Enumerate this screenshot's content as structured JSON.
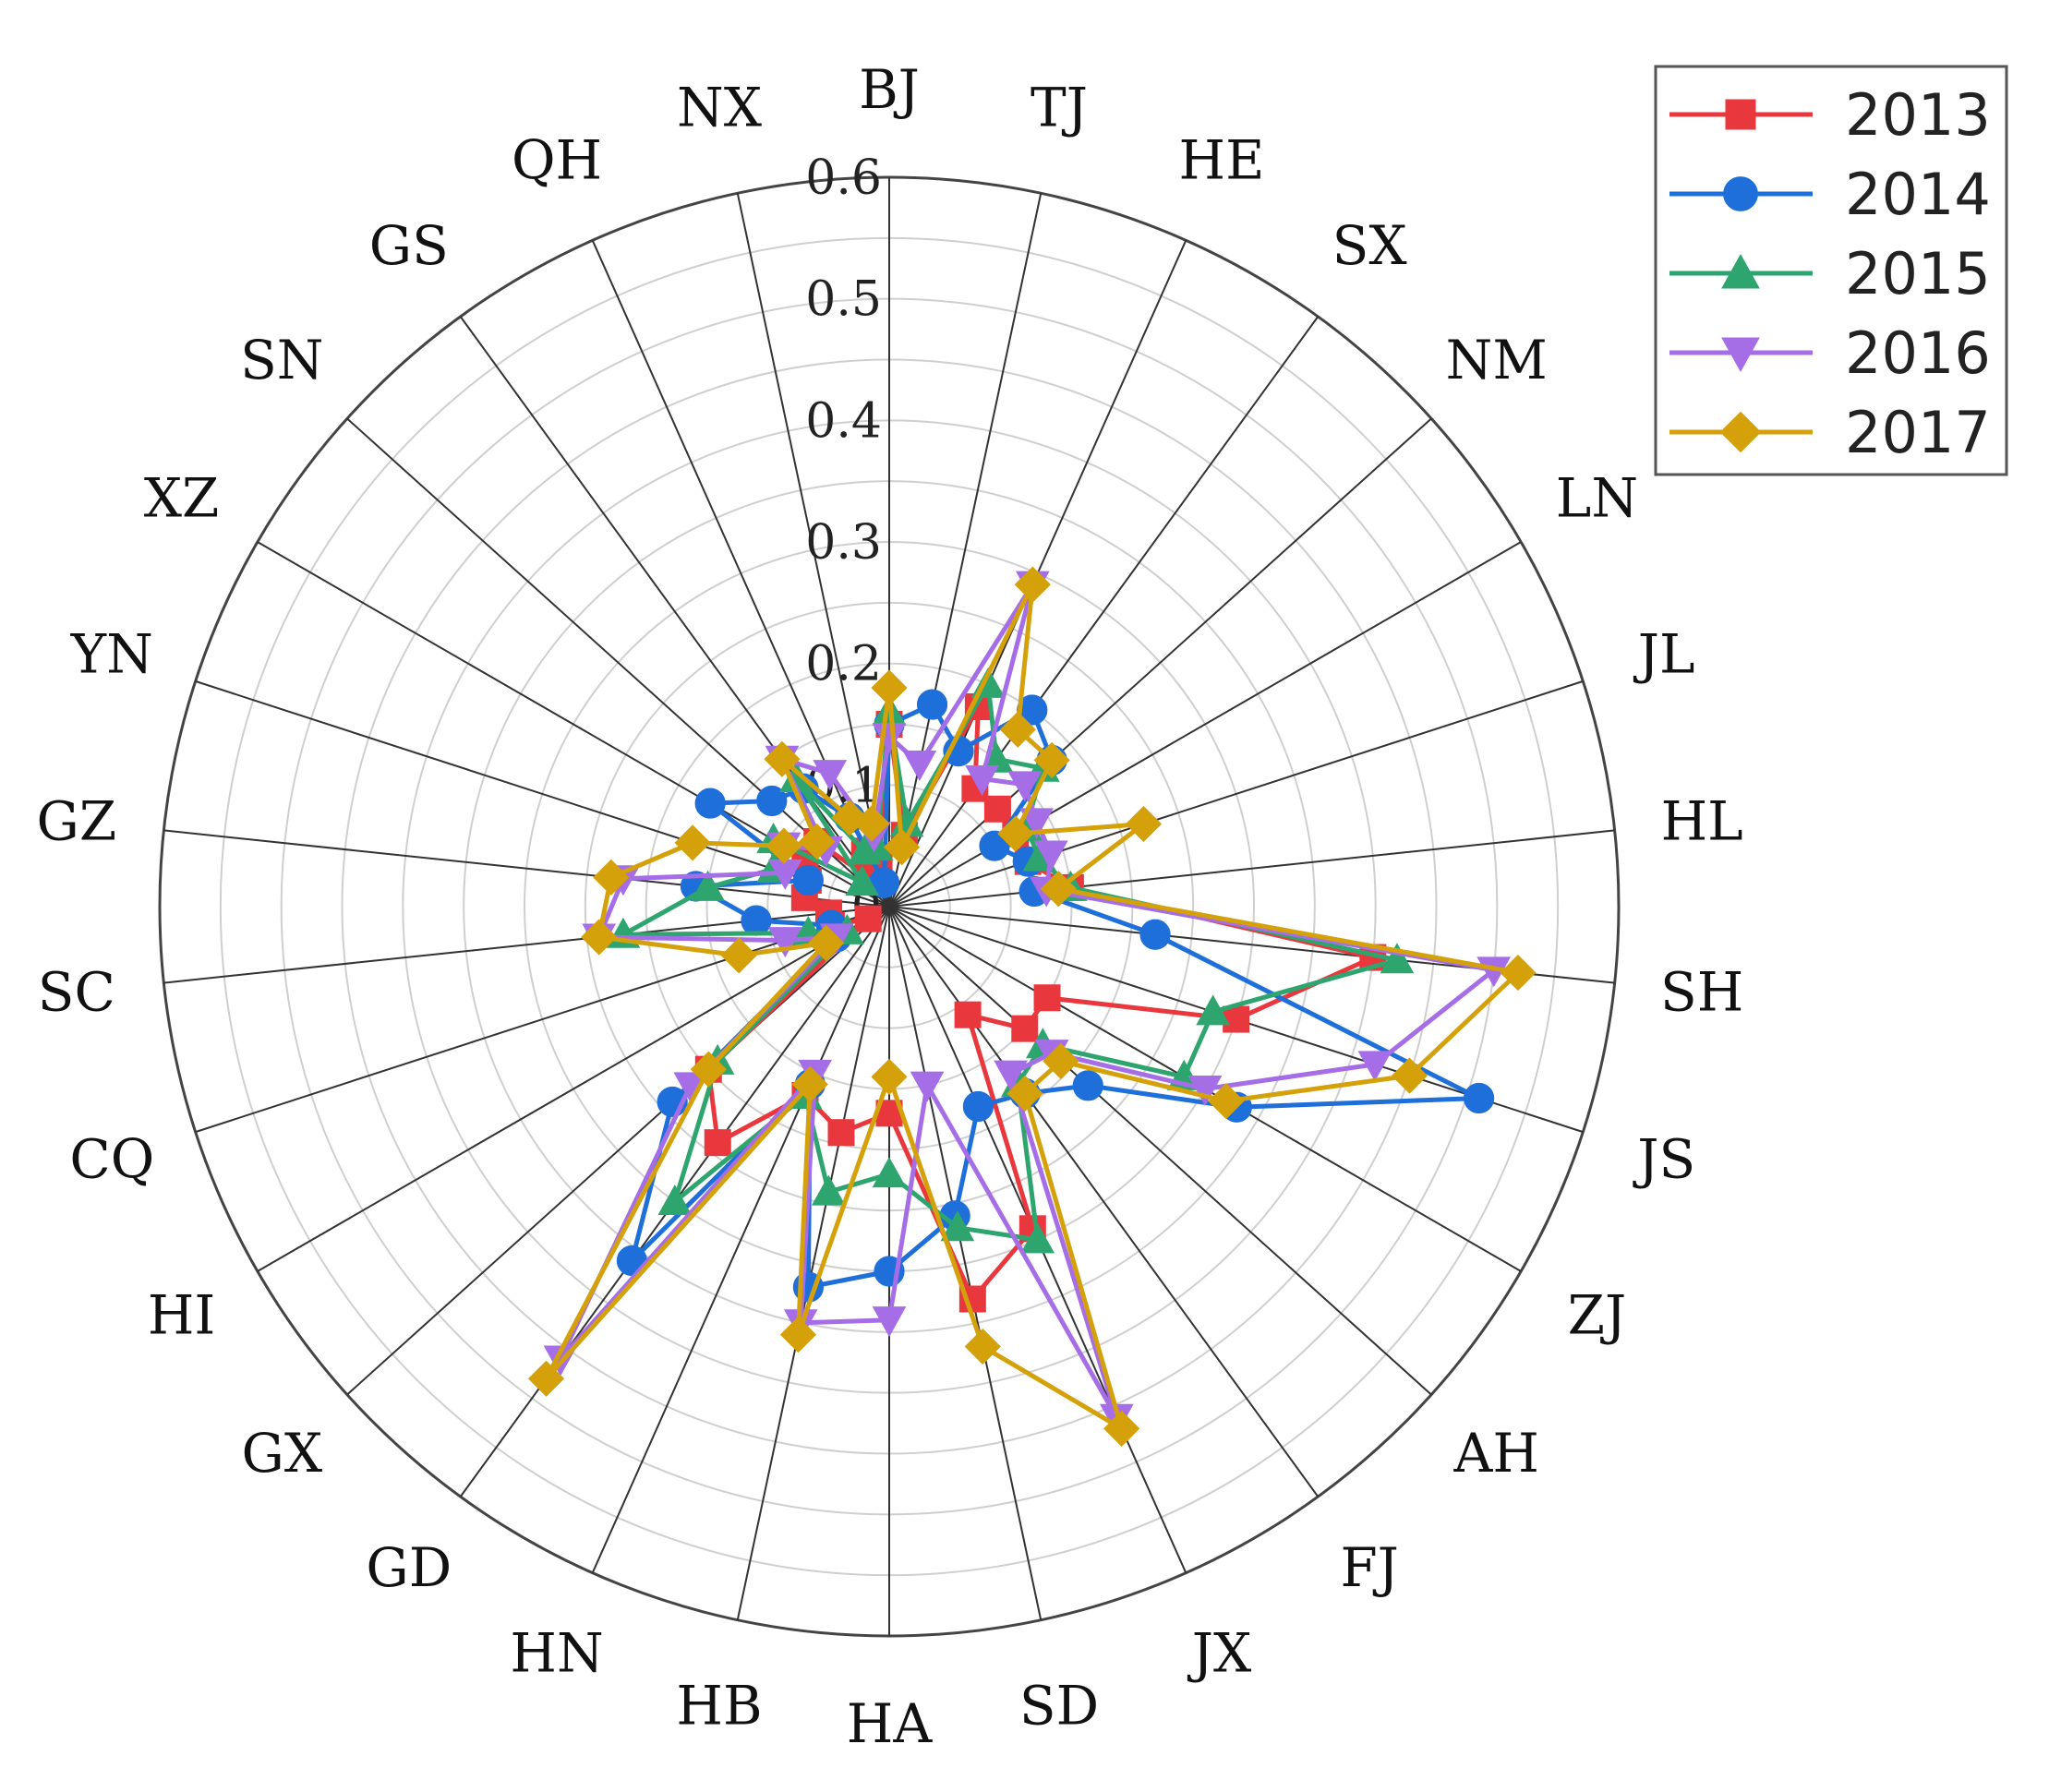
{
  "chart_data": {
    "type": "radar",
    "categories": [
      "BJ",
      "TJ",
      "HE",
      "SX",
      "NM",
      "LN",
      "JL",
      "HL",
      "SH",
      "JS",
      "ZJ",
      "AH",
      "FJ",
      "JX",
      "SD",
      "HA",
      "HB",
      "HN",
      "GD",
      "GX",
      "HI",
      "CQ",
      "SC",
      "GZ",
      "YN",
      "XZ",
      "SN",
      "GS",
      "QH",
      "NX"
    ],
    "radial_ticks": [
      "0",
      "0.1",
      "0.2",
      "0.3",
      "0.4",
      "0.5",
      "0.6"
    ],
    "rlim": [
      0,
      0.6
    ],
    "legend_position": "top-right",
    "series": [
      {
        "name": "2013",
        "color": "#e8383d",
        "marker": "square",
        "values": [
          0.15,
          0.06,
          0.18,
          0.12,
          0.12,
          0.12,
          0.12,
          0.15,
          0.4,
          0.3,
          0.15,
          0.15,
          0.11,
          0.29,
          0.33,
          0.17,
          0.19,
          0.17,
          0.24,
          0.2,
          0.02,
          0.05,
          0.05,
          0.07,
          0.07,
          0.08,
          0.08,
          0.03,
          0.05,
          0.04
        ]
      },
      {
        "name": "2014",
        "color": "#1e6fd9",
        "marker": "circle",
        "values": [
          0.15,
          0.17,
          0.14,
          0.2,
          0.18,
          0.1,
          0.12,
          0.12,
          0.22,
          0.51,
          0.33,
          0.22,
          0.19,
          0.18,
          0.26,
          0.3,
          0.32,
          0.16,
          0.36,
          0.24,
          0.05,
          0.05,
          0.11,
          0.16,
          0.07,
          0.17,
          0.13,
          0.12,
          0.08,
          0.02
        ]
      },
      {
        "name": "2015",
        "color": "#2ea56e",
        "marker": "triangle-up",
        "values": [
          0.16,
          0.07,
          0.2,
          0.15,
          0.17,
          0.13,
          0.13,
          0.15,
          0.42,
          0.28,
          0.28,
          0.17,
          0.18,
          0.3,
          0.27,
          0.22,
          0.24,
          0.17,
          0.3,
          0.19,
          0.04,
          0.07,
          0.22,
          0.15,
          0.1,
          0.11,
          0.03,
          0.13,
          0.05,
          0.05
        ]
      },
      {
        "name": "2016",
        "color": "#a66ee6",
        "marker": "triangle-down",
        "values": [
          0.14,
          0.12,
          0.29,
          0.13,
          0.15,
          0.14,
          0.14,
          0.13,
          0.5,
          0.42,
          0.3,
          0.18,
          0.17,
          0.46,
          0.15,
          0.34,
          0.35,
          0.15,
          0.46,
          0.22,
          0.05,
          0.09,
          0.24,
          0.22,
          0.09,
          0.1,
          0.07,
          0.15,
          0.12,
          0.06
        ]
      },
      {
        "name": "2017",
        "color": "#d4a10a",
        "marker": "diamond",
        "values": [
          0.18,
          0.05,
          0.29,
          0.18,
          0.18,
          0.12,
          0.22,
          0.14,
          0.52,
          0.45,
          0.32,
          0.19,
          0.19,
          0.47,
          0.37,
          0.14,
          0.36,
          0.16,
          0.48,
          0.2,
          0.06,
          0.13,
          0.24,
          0.23,
          0.17,
          0.1,
          0.08,
          0.15,
          0.08,
          0.07
        ]
      }
    ]
  }
}
